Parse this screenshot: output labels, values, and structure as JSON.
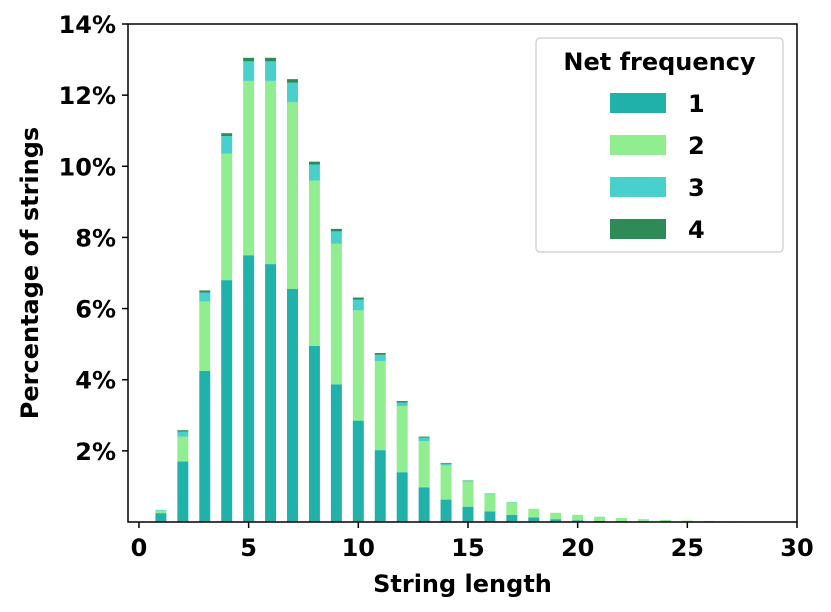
{
  "chart_data": {
    "type": "bar",
    "stacked": true,
    "title": "",
    "xlabel": "String length",
    "ylabel": "Percentage of strings",
    "xlim": [
      -0.5,
      30
    ],
    "ylim": [
      0,
      14
    ],
    "xticks": [
      0,
      5,
      10,
      15,
      20,
      25,
      30
    ],
    "yticks": [
      {
        "value": 2,
        "label": "2%"
      },
      {
        "value": 4,
        "label": "4%"
      },
      {
        "value": 6,
        "label": "6%"
      },
      {
        "value": 8,
        "label": "8%"
      },
      {
        "value": 10,
        "label": "10%"
      },
      {
        "value": 12,
        "label": "12%"
      },
      {
        "value": 14,
        "label": "14%"
      }
    ],
    "grid": false,
    "legend": {
      "title": "Net frequency",
      "placement": "top-right"
    },
    "x": [
      1,
      2,
      3,
      4,
      5,
      6,
      7,
      8,
      9,
      10,
      11,
      12,
      13,
      14,
      15,
      16,
      17,
      18,
      19,
      20,
      21,
      22,
      23,
      24,
      25,
      26,
      27
    ],
    "series": [
      {
        "name": "1",
        "color": "#20b2aa",
        "values": [
          0.25,
          1.7,
          4.25,
          6.8,
          7.5,
          7.25,
          6.55,
          4.95,
          3.87,
          2.85,
          2.02,
          1.4,
          0.97,
          0.63,
          0.43,
          0.3,
          0.2,
          0.13,
          0.08,
          0.05,
          0.03,
          0.02,
          0.01,
          0.01,
          0.0,
          0.0,
          0.0
        ]
      },
      {
        "name": "2",
        "color": "#90ee90",
        "values": [
          0.07,
          0.7,
          1.95,
          3.55,
          4.9,
          5.15,
          5.25,
          4.65,
          3.95,
          3.1,
          2.5,
          1.86,
          1.3,
          0.96,
          0.71,
          0.48,
          0.35,
          0.24,
          0.18,
          0.15,
          0.12,
          0.09,
          0.07,
          0.05,
          0.04,
          0.03,
          0.02
        ]
      },
      {
        "name": "3",
        "color": "#48d1cc",
        "values": [
          0.02,
          0.14,
          0.25,
          0.5,
          0.55,
          0.55,
          0.55,
          0.45,
          0.35,
          0.3,
          0.18,
          0.1,
          0.1,
          0.05,
          0.02,
          0.01,
          0.01,
          0.0,
          0.0,
          0.0,
          0.0,
          0.0,
          0.0,
          0.0,
          0.0,
          0.0,
          0.0
        ]
      },
      {
        "name": "4",
        "color": "#2e8b57",
        "values": [
          0.0,
          0.04,
          0.06,
          0.08,
          0.1,
          0.1,
          0.1,
          0.08,
          0.07,
          0.06,
          0.05,
          0.04,
          0.03,
          0.02,
          0.01,
          0.01,
          0.0,
          0.0,
          0.0,
          0.0,
          0.0,
          0.0,
          0.0,
          0.0,
          0.0,
          0.0,
          0.0
        ]
      }
    ]
  }
}
